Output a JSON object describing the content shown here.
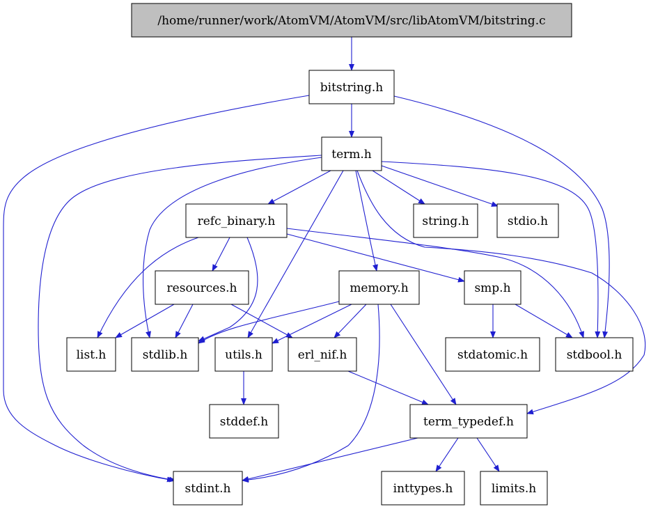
{
  "diagram": {
    "nodes": [
      {
        "id": "root",
        "label": "/home/runner/work/AtomVM/AtomVM/src/libAtomVM/bitstring.c",
        "root": true
      },
      {
        "id": "bitstring_h",
        "label": "bitstring.h"
      },
      {
        "id": "term_h",
        "label": "term.h"
      },
      {
        "id": "refc_binary_h",
        "label": "refc_binary.h"
      },
      {
        "id": "string_h",
        "label": "string.h"
      },
      {
        "id": "stdio_h",
        "label": "stdio.h"
      },
      {
        "id": "resources_h",
        "label": "resources.h"
      },
      {
        "id": "memory_h",
        "label": "memory.h"
      },
      {
        "id": "smp_h",
        "label": "smp.h"
      },
      {
        "id": "list_h",
        "label": "list.h"
      },
      {
        "id": "stdlib_h",
        "label": "stdlib.h"
      },
      {
        "id": "utils_h",
        "label": "utils.h"
      },
      {
        "id": "erl_nif_h",
        "label": "erl_nif.h"
      },
      {
        "id": "stdatomic_h",
        "label": "stdatomic.h"
      },
      {
        "id": "stdbool_h",
        "label": "stdbool.h"
      },
      {
        "id": "stddef_h",
        "label": "stddef.h"
      },
      {
        "id": "term_typedef_h",
        "label": "term_typedef.h"
      },
      {
        "id": "stdint_h",
        "label": "stdint.h"
      },
      {
        "id": "inttypes_h",
        "label": "inttypes.h"
      },
      {
        "id": "limits_h",
        "label": "limits.h"
      }
    ],
    "edges": [
      {
        "from": "root",
        "to": "bitstring_h"
      },
      {
        "from": "bitstring_h",
        "to": "term_h"
      },
      {
        "from": "bitstring_h",
        "to": "stdint_h"
      },
      {
        "from": "bitstring_h",
        "to": "stdbool_h"
      },
      {
        "from": "term_h",
        "to": "refc_binary_h"
      },
      {
        "from": "term_h",
        "to": "string_h"
      },
      {
        "from": "term_h",
        "to": "stdio_h"
      },
      {
        "from": "term_h",
        "to": "memory_h"
      },
      {
        "from": "term_h",
        "to": "stdlib_h"
      },
      {
        "from": "term_h",
        "to": "utils_h"
      },
      {
        "from": "term_h",
        "to": "stdint_h"
      },
      {
        "from": "term_h",
        "to": "stdbool_h"
      },
      {
        "from": "term_h",
        "to": "term_typedef_h"
      },
      {
        "from": "refc_binary_h",
        "to": "resources_h"
      },
      {
        "from": "refc_binary_h",
        "to": "list_h"
      },
      {
        "from": "refc_binary_h",
        "to": "stdlib_h"
      },
      {
        "from": "refc_binary_h",
        "to": "smp_h"
      },
      {
        "from": "refc_binary_h",
        "to": "stdbool_h"
      },
      {
        "from": "resources_h",
        "to": "list_h"
      },
      {
        "from": "resources_h",
        "to": "stdlib_h"
      },
      {
        "from": "resources_h",
        "to": "erl_nif_h"
      },
      {
        "from": "memory_h",
        "to": "stdlib_h"
      },
      {
        "from": "memory_h",
        "to": "utils_h"
      },
      {
        "from": "memory_h",
        "to": "erl_nif_h"
      },
      {
        "from": "memory_h",
        "to": "term_typedef_h"
      },
      {
        "from": "memory_h",
        "to": "stdint_h"
      },
      {
        "from": "smp_h",
        "to": "stdatomic_h"
      },
      {
        "from": "smp_h",
        "to": "stdbool_h"
      },
      {
        "from": "utils_h",
        "to": "stddef_h"
      },
      {
        "from": "erl_nif_h",
        "to": "term_typedef_h"
      },
      {
        "from": "term_typedef_h",
        "to": "stdint_h"
      },
      {
        "from": "term_typedef_h",
        "to": "inttypes_h"
      },
      {
        "from": "term_typedef_h",
        "to": "limits_h"
      }
    ]
  },
  "colors": {
    "edge": "#1f1fd0",
    "root_fill": "#bfbfbf",
    "node_fill": "#ffffff",
    "node_border": "#000000"
  }
}
